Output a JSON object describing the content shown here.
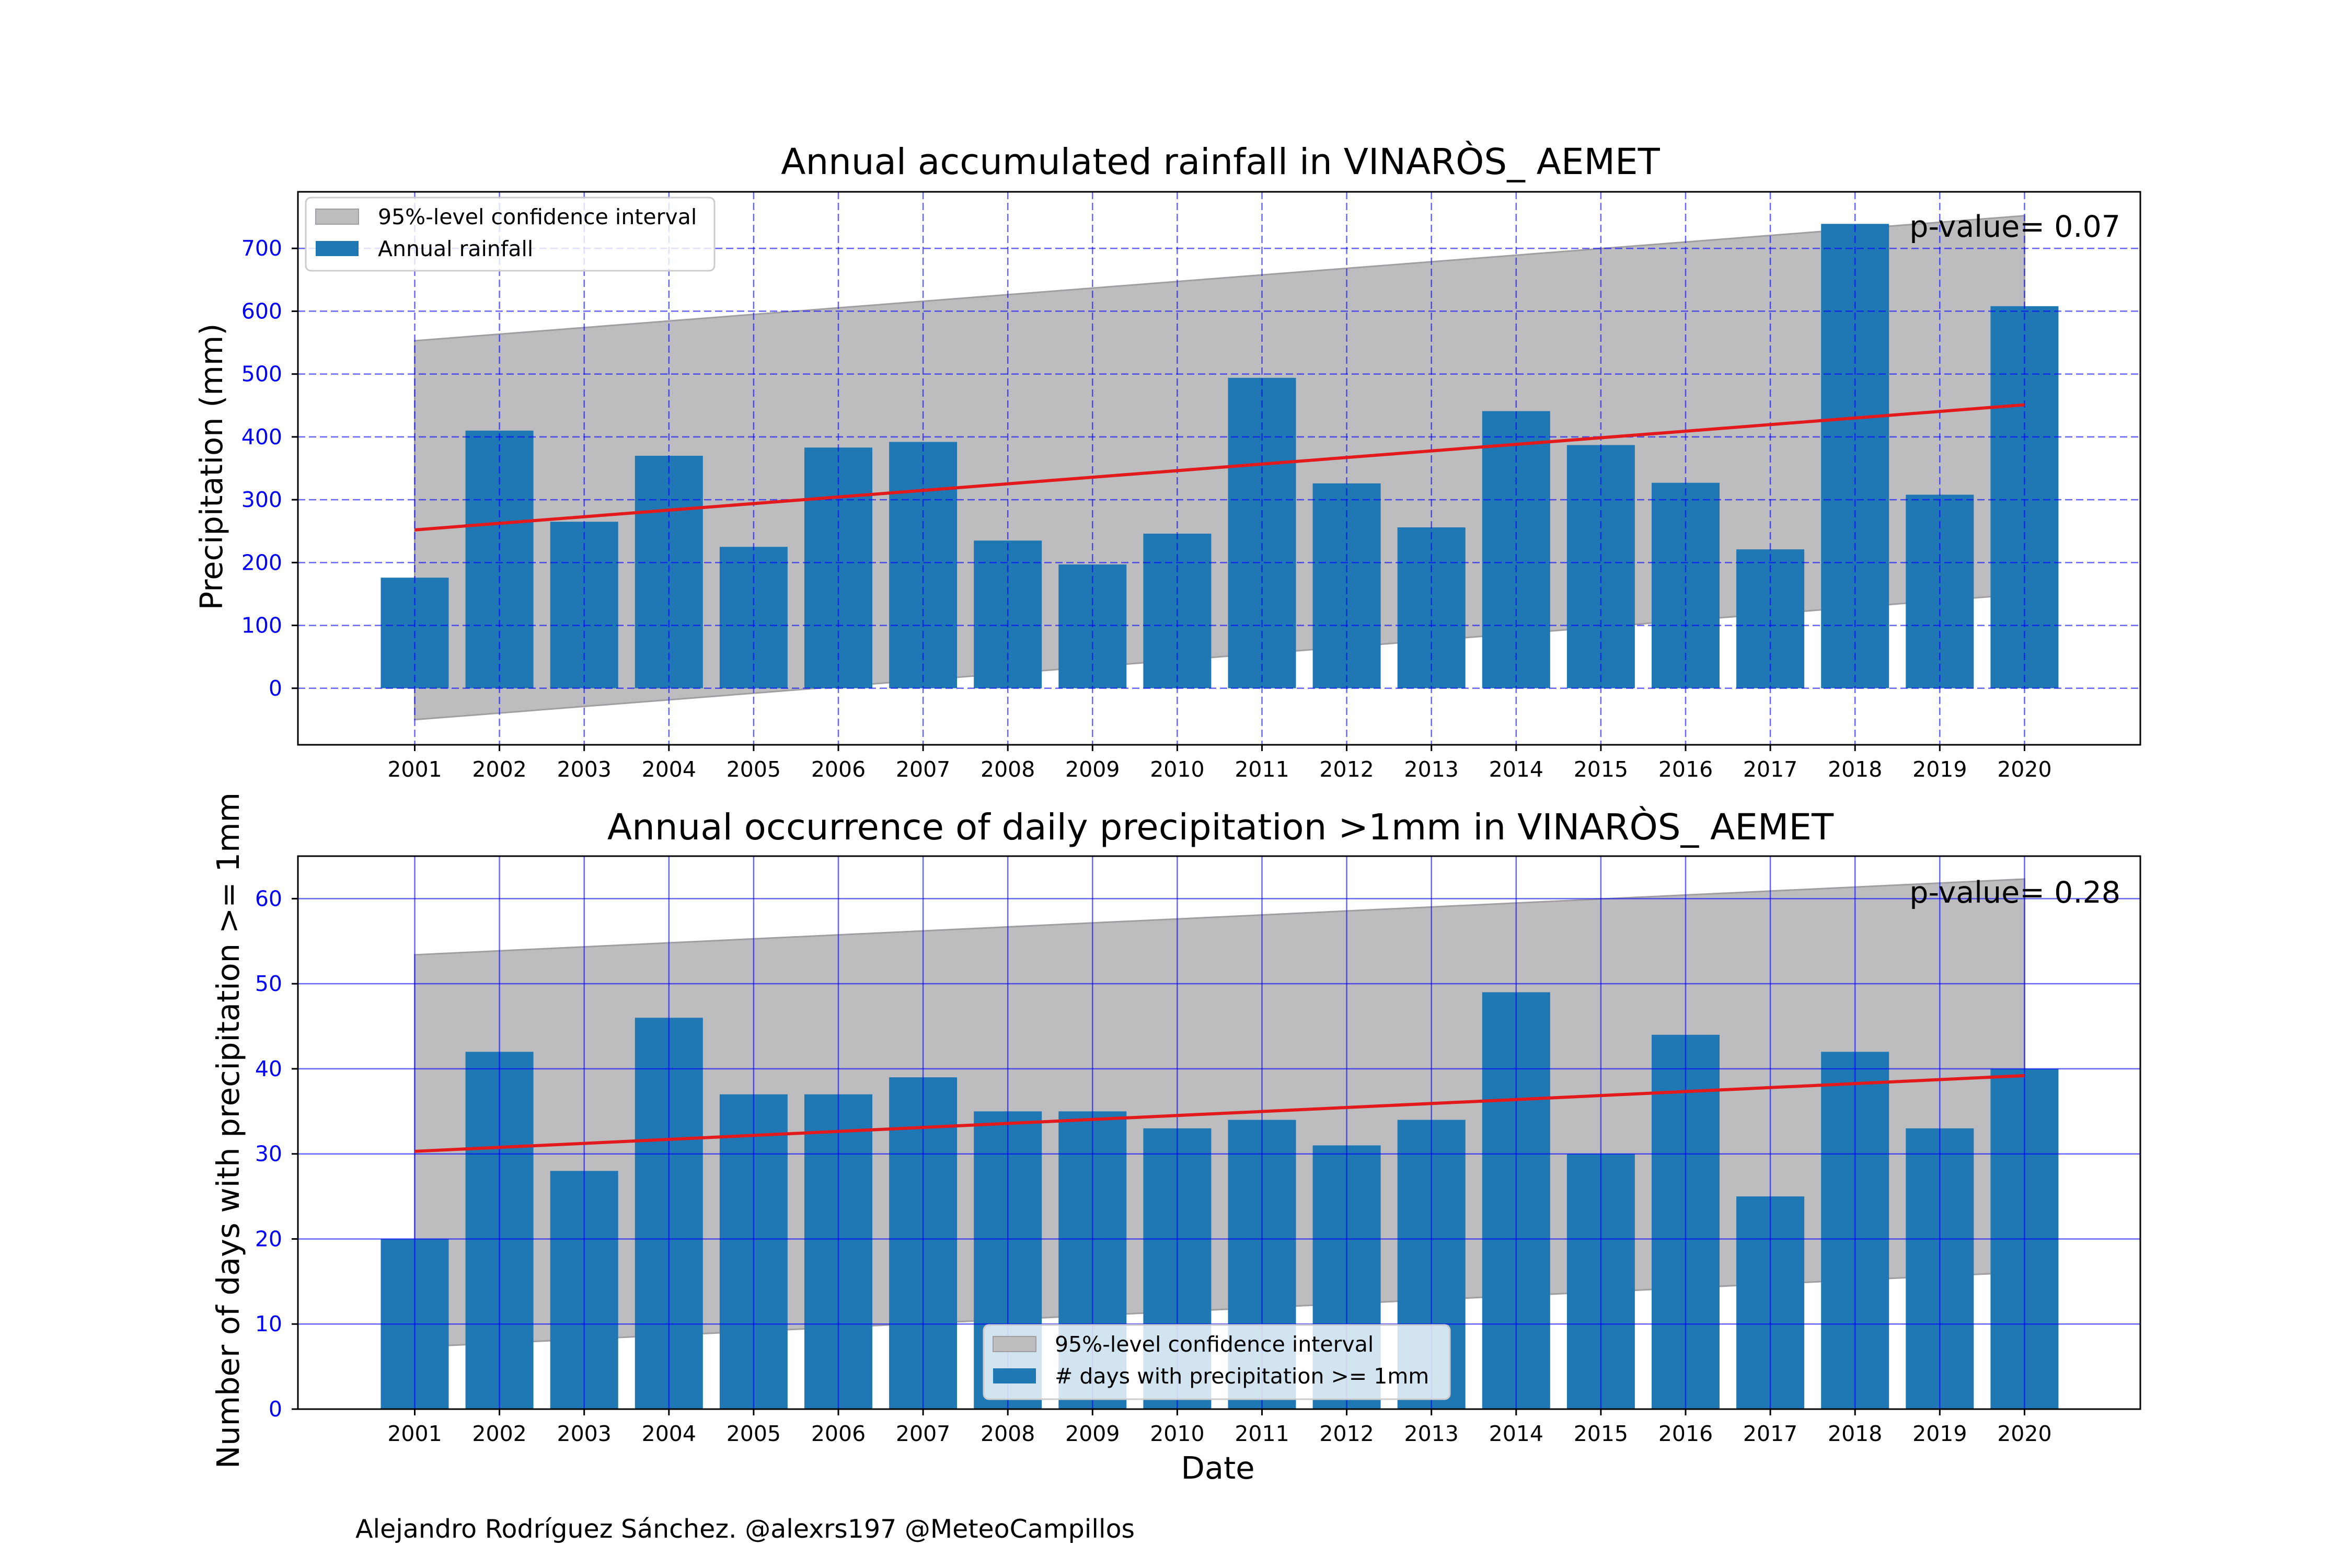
{
  "credit": "Alejandro Rodríguez Sánchez. @alexrs197 @MeteoCampillos",
  "colors": {
    "bar": "#1f77b4",
    "trend": "#e31a1c",
    "ci": "#bdbcbe",
    "grid": "#0000ff",
    "ytick": "#0000ff"
  },
  "chart_data": [
    {
      "type": "bar",
      "title": "Annual accumulated rainfall in VINARÒS_ AEMET",
      "xlabel": "",
      "ylabel": "Precipitation (mm)",
      "categories": [
        "2001",
        "2002",
        "2003",
        "2004",
        "2005",
        "2006",
        "2007",
        "2008",
        "2009",
        "2010",
        "2011",
        "2012",
        "2013",
        "2014",
        "2015",
        "2016",
        "2017",
        "2018",
        "2019",
        "2020"
      ],
      "series": [
        {
          "name": "Annual rainfall",
          "values": [
            176,
            410,
            265,
            370,
            225,
            383,
            392,
            235,
            197,
            246,
            494,
            326,
            256,
            441,
            387,
            327,
            221,
            739,
            308,
            608
          ]
        }
      ],
      "trend": {
        "start": 252,
        "end": 451
      },
      "confidence_interval": {
        "name": "95%-level confidence interval",
        "upper_start": 553,
        "upper_end": 752,
        "lower_start": -50,
        "lower_end": 150
      },
      "annotation": "p-value= 0.07",
      "ylim": [
        -90,
        790
      ],
      "yticks": [
        0,
        100,
        200,
        300,
        400,
        500,
        600,
        700
      ],
      "grid": "dashed",
      "legend": "top-left"
    },
    {
      "type": "bar",
      "title": "Annual occurrence of daily precipitation >1mm in VINARÒS_ AEMET",
      "xlabel": "Date",
      "ylabel": "Number of days with precipitation >= 1mm",
      "categories": [
        "2001",
        "2002",
        "2003",
        "2004",
        "2005",
        "2006",
        "2007",
        "2008",
        "2009",
        "2010",
        "2011",
        "2012",
        "2013",
        "2014",
        "2015",
        "2016",
        "2017",
        "2018",
        "2019",
        "2020"
      ],
      "series": [
        {
          "name": "# days with precipitation >= 1mm",
          "values": [
            20,
            42,
            28,
            46,
            37,
            37,
            39,
            35,
            35,
            33,
            34,
            31,
            34,
            49,
            30,
            44,
            25,
            42,
            33,
            40
          ]
        }
      ],
      "trend": {
        "start": 30.3,
        "end": 39.2
      },
      "confidence_interval": {
        "name": "95%-level confidence interval",
        "upper_start": 53.4,
        "upper_end": 62.3,
        "lower_start": 7.3,
        "lower_end": 16.1
      },
      "annotation": "p-value= 0.28",
      "ylim": [
        0,
        65
      ],
      "yticks": [
        0,
        10,
        20,
        30,
        40,
        50,
        60
      ],
      "grid": "solid",
      "legend": "lower-center"
    }
  ]
}
